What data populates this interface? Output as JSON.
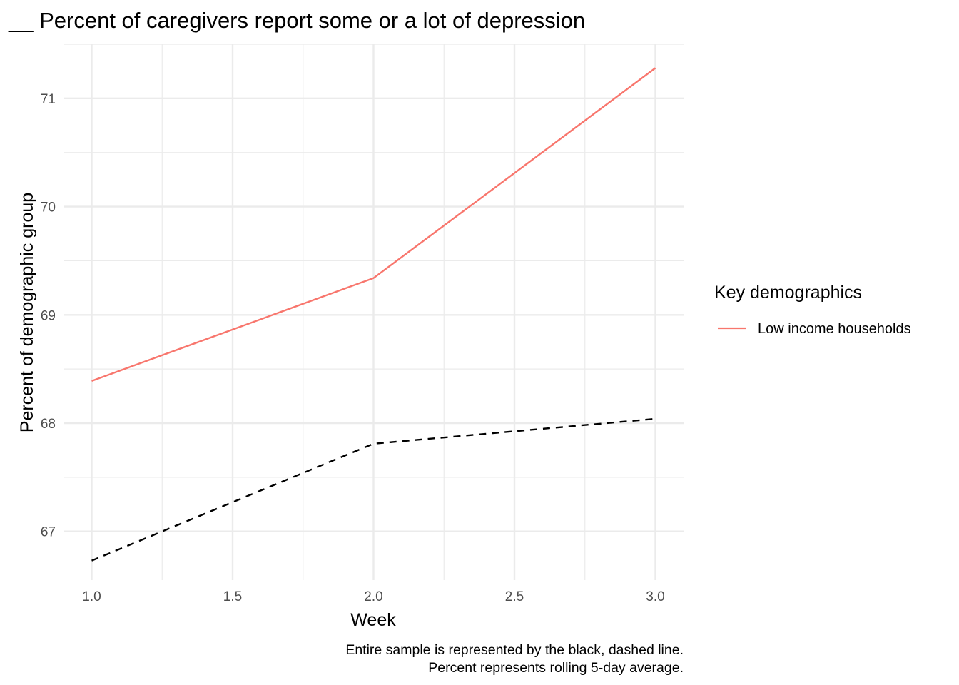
{
  "chart_data": {
    "type": "line",
    "title": "__ Percent of caregivers report some or a lot of depression",
    "xlabel": "Week",
    "ylabel": "Percent of demographic group",
    "x_ticks": [
      "1.0",
      "1.5",
      "2.0",
      "2.5",
      "3.0"
    ],
    "y_ticks": [
      "67",
      "68",
      "69",
      "70",
      "71"
    ],
    "xlim": [
      0.9,
      3.1
    ],
    "ylim": [
      66.55,
      71.5
    ],
    "grid": true,
    "legend": {
      "title": "Key demographics",
      "position": "right",
      "entries": [
        {
          "label": "Low income households",
          "color": "#F8766D"
        }
      ]
    },
    "series": [
      {
        "name": "Low income households",
        "color": "#F8766D",
        "style": "solid",
        "x": [
          1,
          2,
          3
        ],
        "y": [
          68.39,
          69.34,
          71.28
        ]
      },
      {
        "color": "#000000",
        "style": "dashed",
        "x": [
          1,
          2,
          3
        ],
        "y": [
          66.73,
          67.81,
          68.04
        ]
      }
    ],
    "caption": [
      "Entire sample is represented by the black, dashed line.",
      "Percent represents rolling 5-day average."
    ]
  }
}
